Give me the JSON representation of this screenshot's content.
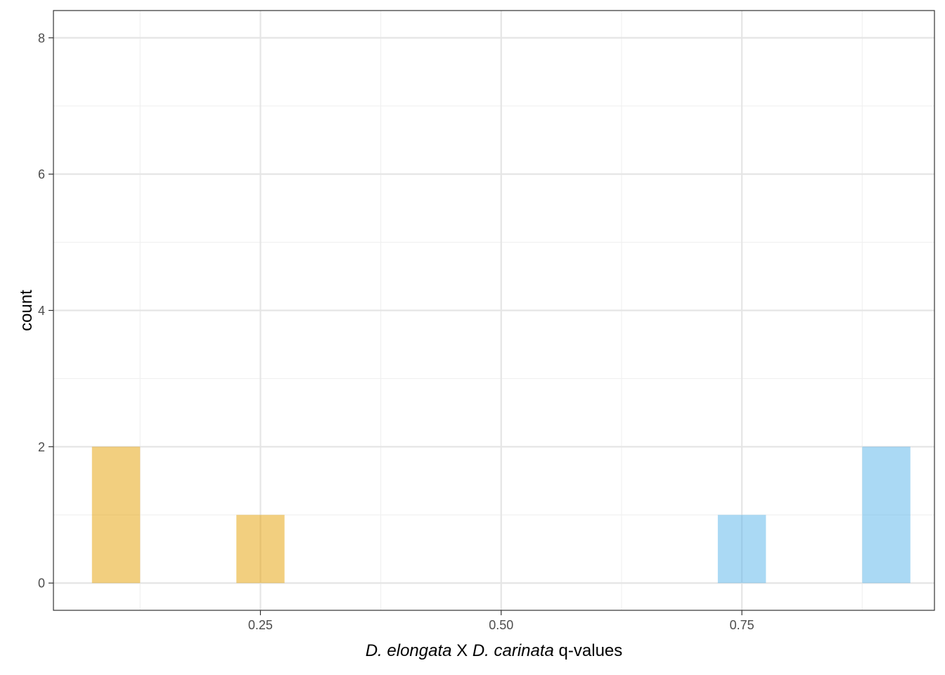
{
  "chart_data": {
    "type": "bar",
    "subtype": "histogram",
    "xlabel_parts": [
      {
        "text": "D. elongata",
        "italic": true
      },
      {
        "text": " X  ",
        "italic": false
      },
      {
        "text": "D. carinata",
        "italic": true
      },
      {
        "text": " q-values",
        "italic": false
      }
    ],
    "ylabel": "count",
    "xlim": [
      0.035,
      0.95
    ],
    "ylim": [
      -0.4,
      8.4
    ],
    "x_ticks": [
      0.25,
      0.5,
      0.75
    ],
    "x_tick_labels": [
      "0.25",
      "0.50",
      "0.75"
    ],
    "x_minor_ticks": [
      0.125,
      0.375,
      0.625,
      0.875
    ],
    "y_ticks": [
      0,
      2,
      4,
      6,
      8
    ],
    "y_tick_labels": [
      "0",
      "2",
      "4",
      "6",
      "8"
    ],
    "y_minor_ticks": [
      1,
      3,
      5,
      7
    ],
    "grid": true,
    "theme": "bw",
    "bins": [
      {
        "x0": 0.075,
        "x1": 0.125,
        "count": 2,
        "group": "orange"
      },
      {
        "x0": 0.225,
        "x1": 0.275,
        "count": 1,
        "group": "orange"
      },
      {
        "x0": 0.725,
        "x1": 0.775,
        "count": 1,
        "group": "blue"
      },
      {
        "x0": 0.875,
        "x1": 0.925,
        "count": 2,
        "group": "blue"
      }
    ],
    "colors": {
      "orange": "#E69F00",
      "blue": "#56B4E9",
      "bar_opacity": 0.5,
      "grid_major": "#e5e5e5",
      "grid_minor": "#f0f0f0",
      "panel_border": "#333333"
    }
  }
}
